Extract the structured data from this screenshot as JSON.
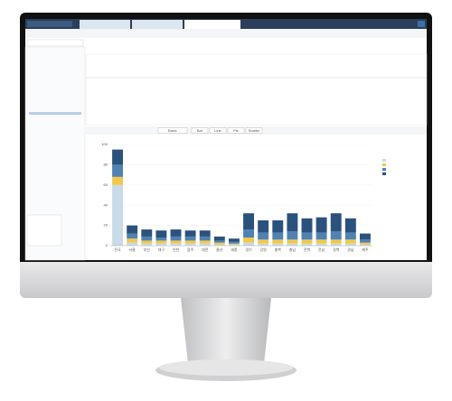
{
  "toolbar": {
    "buttons": [
      "Bar",
      "Line",
      "Pie",
      "Scatter"
    ],
    "chart_style": "Basic"
  },
  "chart_data": {
    "type": "stacked-bar",
    "categories": [
      "전국",
      "서울",
      "부산",
      "대구",
      "인천",
      "광주",
      "대전",
      "울산",
      "세종",
      "경기",
      "강원",
      "충북",
      "충남",
      "전북",
      "전남",
      "경북",
      "경남",
      "제주"
    ],
    "series": [
      {
        "color": "#c9dbe8",
        "values": [
          60,
          3,
          2,
          2,
          2,
          2,
          2,
          1,
          1,
          3,
          2,
          2,
          2,
          2,
          2,
          2,
          2,
          1
        ]
      },
      {
        "color": "#f2c84b",
        "values": [
          8,
          4,
          3,
          3,
          3,
          3,
          3,
          2,
          1,
          5,
          4,
          4,
          4,
          4,
          4,
          4,
          4,
          2
        ]
      },
      {
        "color": "#4f82b3",
        "values": [
          12,
          5,
          4,
          3,
          4,
          4,
          4,
          2,
          2,
          8,
          7,
          7,
          8,
          7,
          7,
          8,
          7,
          3
        ]
      },
      {
        "color": "#2b527d",
        "values": [
          15,
          8,
          7,
          7,
          7,
          6,
          6,
          4,
          3,
          16,
          12,
          12,
          18,
          14,
          15,
          18,
          14,
          6
        ]
      }
    ],
    "ylim": [
      0,
      100
    ],
    "yticks": [
      0,
      20,
      40,
      60,
      80,
      100
    ],
    "grid": true
  }
}
